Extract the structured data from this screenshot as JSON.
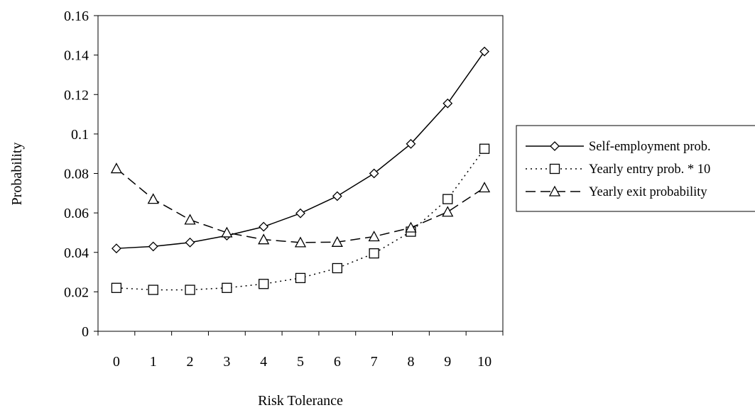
{
  "chart_data": {
    "type": "line",
    "title": "",
    "xlabel": "Risk Tolerance",
    "ylabel": "Probability",
    "x": [
      0,
      1,
      2,
      3,
      4,
      5,
      6,
      7,
      8,
      9,
      10
    ],
    "x_tick_labels": [
      "0",
      "1",
      "2",
      "3",
      "4",
      "5",
      "6",
      "7",
      "8",
      "9",
      "10"
    ],
    "ylim": [
      0,
      0.16
    ],
    "y_ticks": [
      0,
      0.02,
      0.04,
      0.06,
      0.08,
      0.1,
      0.12,
      0.14,
      0.16
    ],
    "y_tick_labels": [
      "0",
      "0.02",
      "0.04",
      "0.06",
      "0.08",
      "0.1",
      "0.12",
      "0.14",
      "0.16"
    ],
    "grid": false,
    "legend_position": "right",
    "series": [
      {
        "name": "Self-employment prob.",
        "marker": "diamond",
        "line_style": "solid",
        "values": [
          0.042,
          0.043,
          0.045,
          0.0485,
          0.053,
          0.0598,
          0.0685,
          0.08,
          0.095,
          0.1155,
          0.1418
        ]
      },
      {
        "name": "Yearly entry prob. * 10",
        "marker": "square",
        "line_style": "dotted",
        "values": [
          0.022,
          0.021,
          0.021,
          0.022,
          0.024,
          0.027,
          0.032,
          0.0395,
          0.0505,
          0.067,
          0.0925
        ]
      },
      {
        "name": "Yearly exit probability",
        "marker": "triangle",
        "line_style": "dashed",
        "values": [
          0.0825,
          0.067,
          0.0565,
          0.05,
          0.0465,
          0.045,
          0.0452,
          0.048,
          0.0525,
          0.0605,
          0.0728
        ]
      }
    ]
  }
}
